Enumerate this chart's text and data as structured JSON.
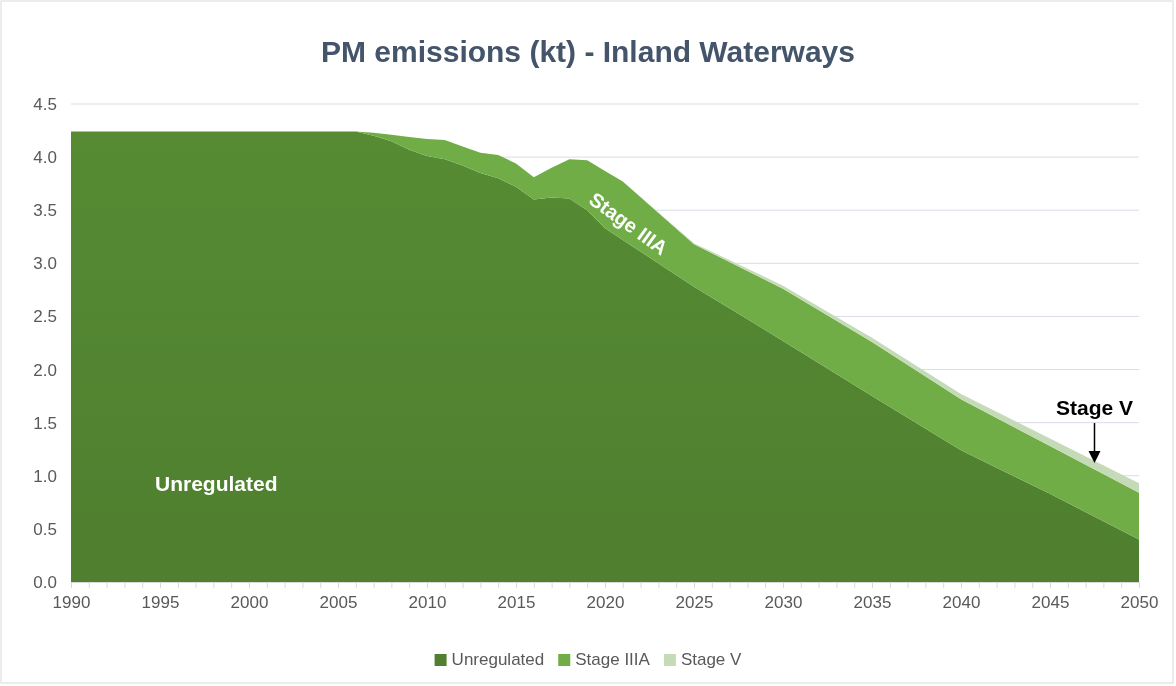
{
  "chart_data": {
    "type": "area",
    "stacked": true,
    "title": "PM emissions (kt) - Inland Waterways",
    "x": [
      1990,
      2006,
      2007,
      2008,
      2009,
      2010,
      2011,
      2012,
      2013,
      2014,
      2015,
      2016,
      2017,
      2018,
      2019,
      2020,
      2021,
      2025,
      2030,
      2035,
      2040,
      2045,
      2050
    ],
    "series": [
      {
        "name": "Unregulated",
        "color": "#4f7f2f",
        "values": [
          4.24,
          4.24,
          4.2,
          4.15,
          4.07,
          4.01,
          3.98,
          3.92,
          3.85,
          3.8,
          3.72,
          3.6,
          3.62,
          3.61,
          3.5,
          3.33,
          3.22,
          2.78,
          2.27,
          1.75,
          1.24,
          0.83,
          0.4
        ]
      },
      {
        "name": "Stage IIIA",
        "color": "#70ad47",
        "values": [
          0,
          0,
          0.03,
          0.06,
          0.12,
          0.16,
          0.18,
          0.18,
          0.19,
          0.22,
          0.22,
          0.21,
          0.28,
          0.37,
          0.47,
          0.54,
          0.55,
          0.4,
          0.49,
          0.51,
          0.48,
          0.45,
          0.44
        ]
      },
      {
        "name": "Stage V",
        "color": "#c5dbb8",
        "values": [
          0,
          0,
          0,
          0,
          0,
          0,
          0,
          0,
          0,
          0,
          0,
          0,
          0,
          0,
          0,
          0,
          0,
          0.01,
          0.03,
          0.04,
          0.05,
          0.07,
          0.09
        ]
      }
    ],
    "xlim": [
      1990,
      2050
    ],
    "xticks": [
      1990,
      {
        "value": 1991,
        "label": null
      },
      {
        "value": 1992,
        "label": null
      },
      {
        "value": 1993,
        "label": null
      },
      {
        "value": 1994,
        "label": null
      },
      1995,
      {
        "value": 1996,
        "label": null
      },
      {
        "value": 1997,
        "label": null
      },
      {
        "value": 1998,
        "label": null
      },
      {
        "value": 1999,
        "label": null
      },
      2000,
      {
        "value": 2001,
        "label": null
      },
      {
        "value": 2002,
        "label": null
      },
      {
        "value": 2003,
        "label": null
      },
      {
        "value": 2004,
        "label": null
      },
      2005,
      {
        "value": 2006,
        "label": null
      },
      {
        "value": 2007,
        "label": null
      },
      {
        "value": 2008,
        "label": null
      },
      {
        "value": 2009,
        "label": null
      },
      2010,
      {
        "value": 2011,
        "label": null
      },
      {
        "value": 2012,
        "label": null
      },
      {
        "value": 2013,
        "label": null
      },
      {
        "value": 2014,
        "label": null
      },
      2015,
      {
        "value": 2016,
        "label": null
      },
      {
        "value": 2017,
        "label": null
      },
      {
        "value": 2018,
        "label": null
      },
      {
        "value": 2019,
        "label": null
      },
      2020,
      {
        "value": 2021,
        "label": null
      },
      {
        "value": 2022,
        "label": null
      },
      {
        "value": 2023,
        "label": null
      },
      {
        "value": 2024,
        "label": null
      },
      2025,
      {
        "value": 2026,
        "label": null
      },
      {
        "value": 2027,
        "label": null
      },
      {
        "value": 2028,
        "label": null
      },
      {
        "value": 2029,
        "label": null
      },
      2030,
      {
        "value": 2031,
        "label": null
      },
      {
        "value": 2032,
        "label": null
      },
      {
        "value": 2033,
        "label": null
      },
      {
        "value": 2034,
        "label": null
      },
      2035,
      {
        "value": 2036,
        "label": null
      },
      {
        "value": 2037,
        "label": null
      },
      {
        "value": 2038,
        "label": null
      },
      {
        "value": 2039,
        "label": null
      },
      2040,
      {
        "value": 2041,
        "label": null
      },
      {
        "value": 2042,
        "label": null
      },
      {
        "value": 2043,
        "label": null
      },
      {
        "value": 2044,
        "label": null
      },
      2045,
      {
        "value": 2046,
        "label": null
      },
      {
        "value": 2047,
        "label": null
      },
      {
        "value": 2048,
        "label": null
      },
      {
        "value": 2049,
        "label": null
      },
      2050
    ],
    "ylim": [
      0,
      4.5
    ],
    "yticks": [
      {
        "value": 0,
        "label": "0.0"
      },
      {
        "value": 0.5,
        "label": "0.5"
      },
      {
        "value": 1,
        "label": "1.0"
      },
      {
        "value": 1.5,
        "label": "1.5"
      },
      {
        "value": 2,
        "label": "2.0"
      },
      {
        "value": 2.5,
        "label": "2.5"
      },
      {
        "value": 3,
        "label": "3.0"
      },
      {
        "value": 3.5,
        "label": "3.5"
      },
      {
        "value": 4,
        "label": "4.0"
      },
      {
        "value": 4.5,
        "label": "4.5"
      }
    ],
    "grid": "y",
    "legend": "bottom",
    "annotations": [
      "Unregulated",
      "Stage IIIA",
      {
        "text": "Stage V",
        "x": 2047.5,
        "y": 1.12
      }
    ]
  }
}
